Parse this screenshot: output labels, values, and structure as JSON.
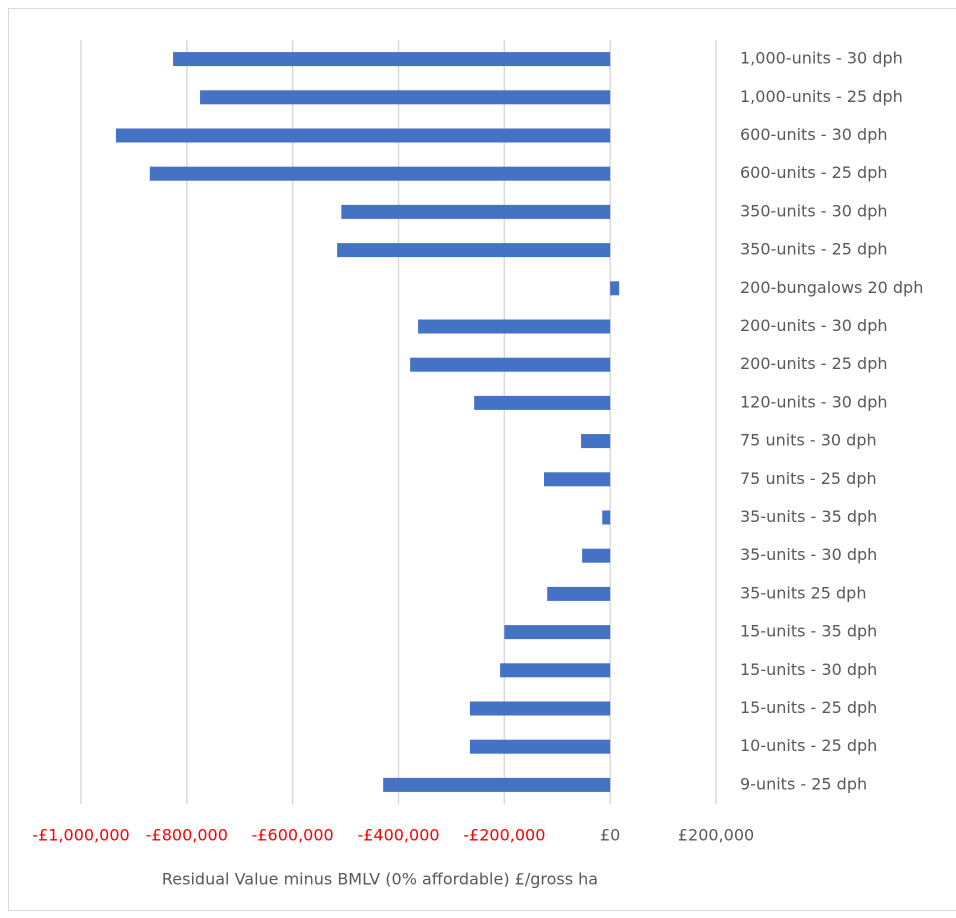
{
  "chart_data": {
    "type": "bar",
    "orientation": "horizontal",
    "x_axis_title": "Residual Value minus BMLV (0% affordable) £/gross ha",
    "categories": [
      "1,000-units - 30 dph",
      "1,000-units - 25 dph",
      "600-units - 30 dph",
      "600-units - 25 dph",
      "350-units - 30 dph",
      "350-units - 25 dph",
      "200-bungalows 20 dph",
      "200-units - 30 dph",
      "200-units - 25 dph",
      "120-units - 30 dph",
      "75 units - 30 dph",
      "75 units - 25 dph",
      "35-units - 35 dph",
      "35-units - 30 dph",
      "35-units 25 dph",
      "15-units - 35 dph",
      "15-units - 30 dph",
      "15-units - 25 dph",
      "10-units - 25 dph",
      "9-units - 25 dph"
    ],
    "values": [
      -826000,
      -775000,
      -934000,
      -870000,
      -508000,
      -516000,
      17000,
      -363000,
      -378000,
      -257000,
      -55000,
      -125000,
      -15000,
      -53000,
      -119000,
      -200000,
      -208000,
      -265000,
      -265000,
      -429000
    ],
    "color": "#4472c4",
    "xlim": [
      -1000000,
      200000
    ],
    "xticks": [
      {
        "value": -1000000,
        "label": "-£1,000,000"
      },
      {
        "value": -800000,
        "label": "-£800,000"
      },
      {
        "value": -600000,
        "label": "-£600,000"
      },
      {
        "value": -400000,
        "label": "-£400,000"
      },
      {
        "value": -200000,
        "label": "-£200,000"
      },
      {
        "value": 0,
        "label": "£0"
      },
      {
        "value": 200000,
        "label": "£200,000"
      }
    ],
    "negative_tick_color": "#ff0000",
    "grid": true
  }
}
